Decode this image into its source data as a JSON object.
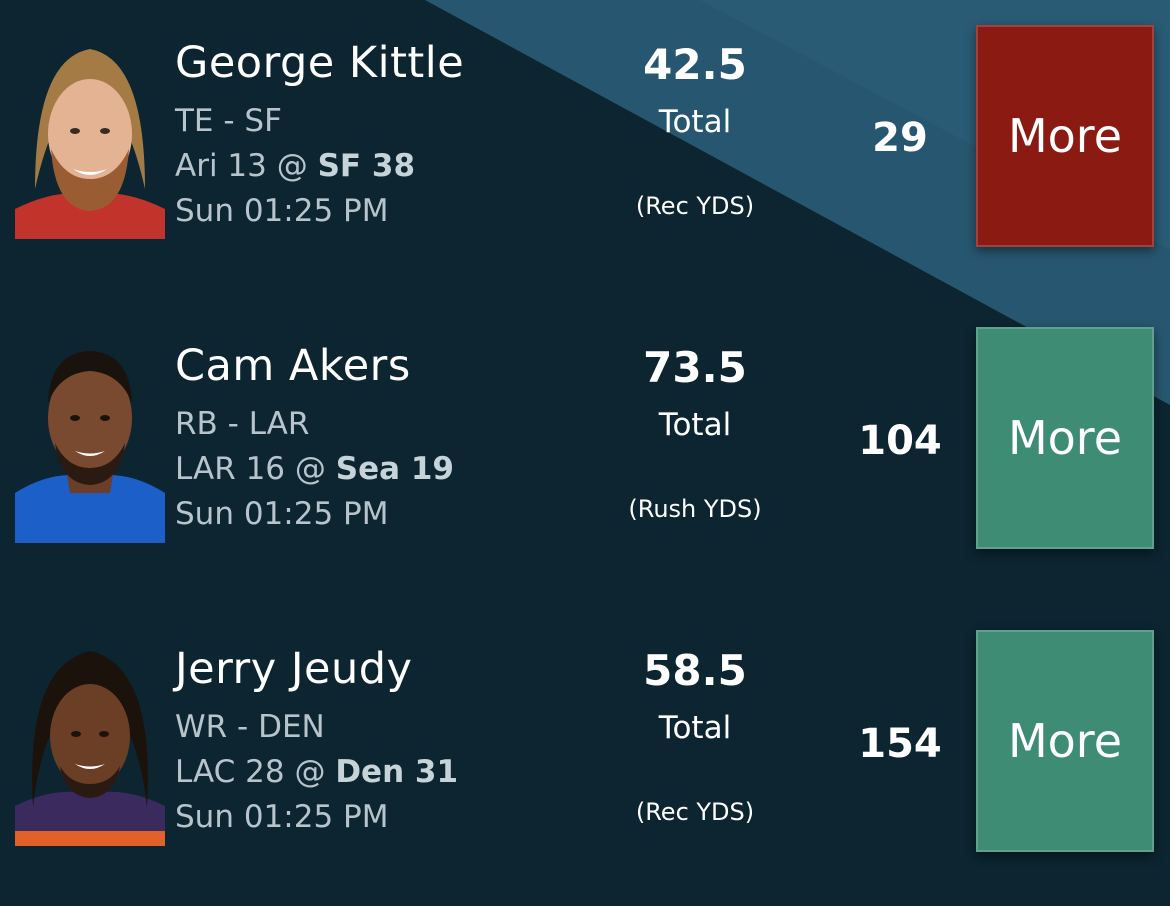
{
  "colors": {
    "background": "#0c2530",
    "highlight": "#275770",
    "more_red": "#8a1a12",
    "more_green": "#3e8c73"
  },
  "players": [
    {
      "name": "George Kittle",
      "position": "TE - SF",
      "game_away": "Ari 13 @ ",
      "game_home": "SF 38",
      "time": "Sun 01:25 PM",
      "line": "42.5",
      "line_label": "Total",
      "stat": "(Rec YDS)",
      "actual": "29",
      "button_label": "More",
      "button_state": "selected-red",
      "avatar_icon": "player-headshot-kittle"
    },
    {
      "name": "Cam Akers",
      "position": "RB - LAR",
      "game_away": "LAR 16 @ ",
      "game_home": "Sea 19",
      "time": "Sun 01:25 PM",
      "line": "73.5",
      "line_label": "Total",
      "stat": "(Rush YDS)",
      "actual": "104",
      "button_label": "More",
      "button_state": "selected-green",
      "avatar_icon": "player-headshot-akers"
    },
    {
      "name": "Jerry Jeudy",
      "position": "WR - DEN",
      "game_away": "LAC 28 @ ",
      "game_home": "Den 31",
      "time": "Sun 01:25 PM",
      "line": "58.5",
      "line_label": "Total",
      "stat": "(Rec YDS)",
      "actual": "154",
      "button_label": "More",
      "button_state": "selected-green",
      "avatar_icon": "player-headshot-jeudy"
    }
  ]
}
